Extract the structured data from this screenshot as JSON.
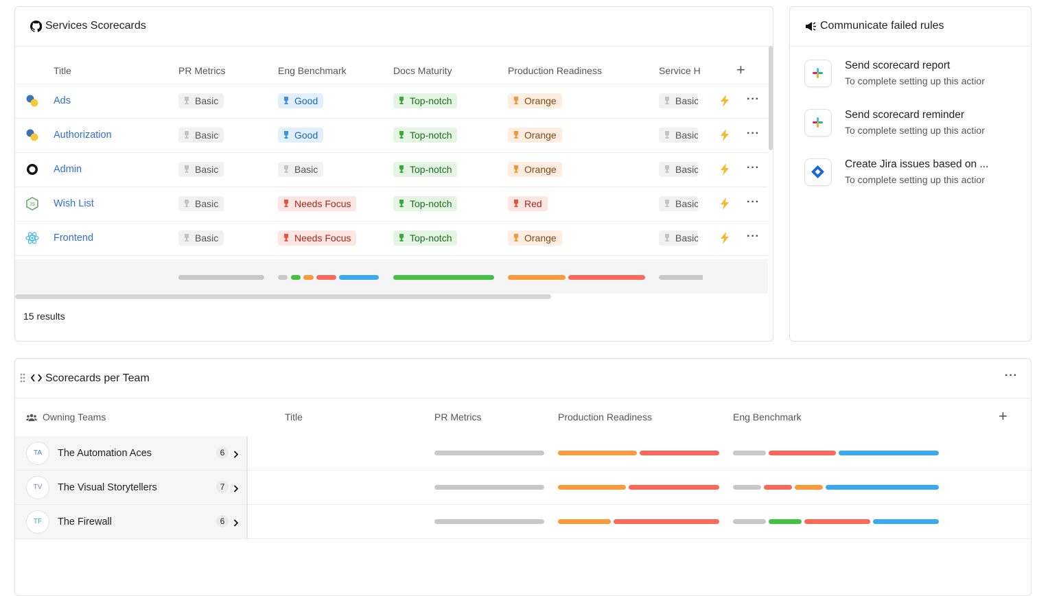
{
  "services_card": {
    "title": "Services Scorecards",
    "columns": [
      "Title",
      "PR Metrics",
      "Eng Benchmark",
      "Docs Maturity",
      "Production Readiness",
      "Service H"
    ],
    "rows": [
      [
        "Ads",
        "Basic",
        "Good",
        "Top-notch",
        "Orange",
        "Basic"
      ],
      [
        "Authorization",
        "Basic",
        "Good",
        "Top-notch",
        "Orange",
        "Basic"
      ],
      [
        "Admin",
        "Basic",
        "Basic",
        "Top-notch",
        "Orange",
        "Basic"
      ],
      [
        "Wish List",
        "Basic",
        "Needs Focus",
        "Top-notch",
        "Red",
        "Basic"
      ],
      [
        "Frontend",
        "Basic",
        "Needs Focus",
        "Top-notch",
        "Orange",
        "Basic"
      ]
    ],
    "results": "15 results"
  },
  "actions_card": {
    "title": "Communicate failed rules",
    "items": [
      {
        "title": "Send scorecard report",
        "subtitle": "To complete setting up this actior"
      },
      {
        "title": "Send scorecard reminder",
        "subtitle": "To complete setting up this actior"
      },
      {
        "title": "Create Jira issues based on ...",
        "subtitle": "To complete setting up this actior"
      }
    ]
  },
  "teams_card": {
    "title": "Scorecards per Team",
    "columns": [
      "Owning Teams",
      "Title",
      "PR Metrics",
      "Production Readiness",
      "Eng Benchmark"
    ],
    "rows": [
      {
        "initials": "TA",
        "name": "The Automation Aces",
        "count": 6
      },
      {
        "initials": "TV",
        "name": "The Visual Storytellers",
        "count": 7
      },
      {
        "initials": "TF",
        "name": "The Firewall",
        "count": 6
      }
    ]
  }
}
